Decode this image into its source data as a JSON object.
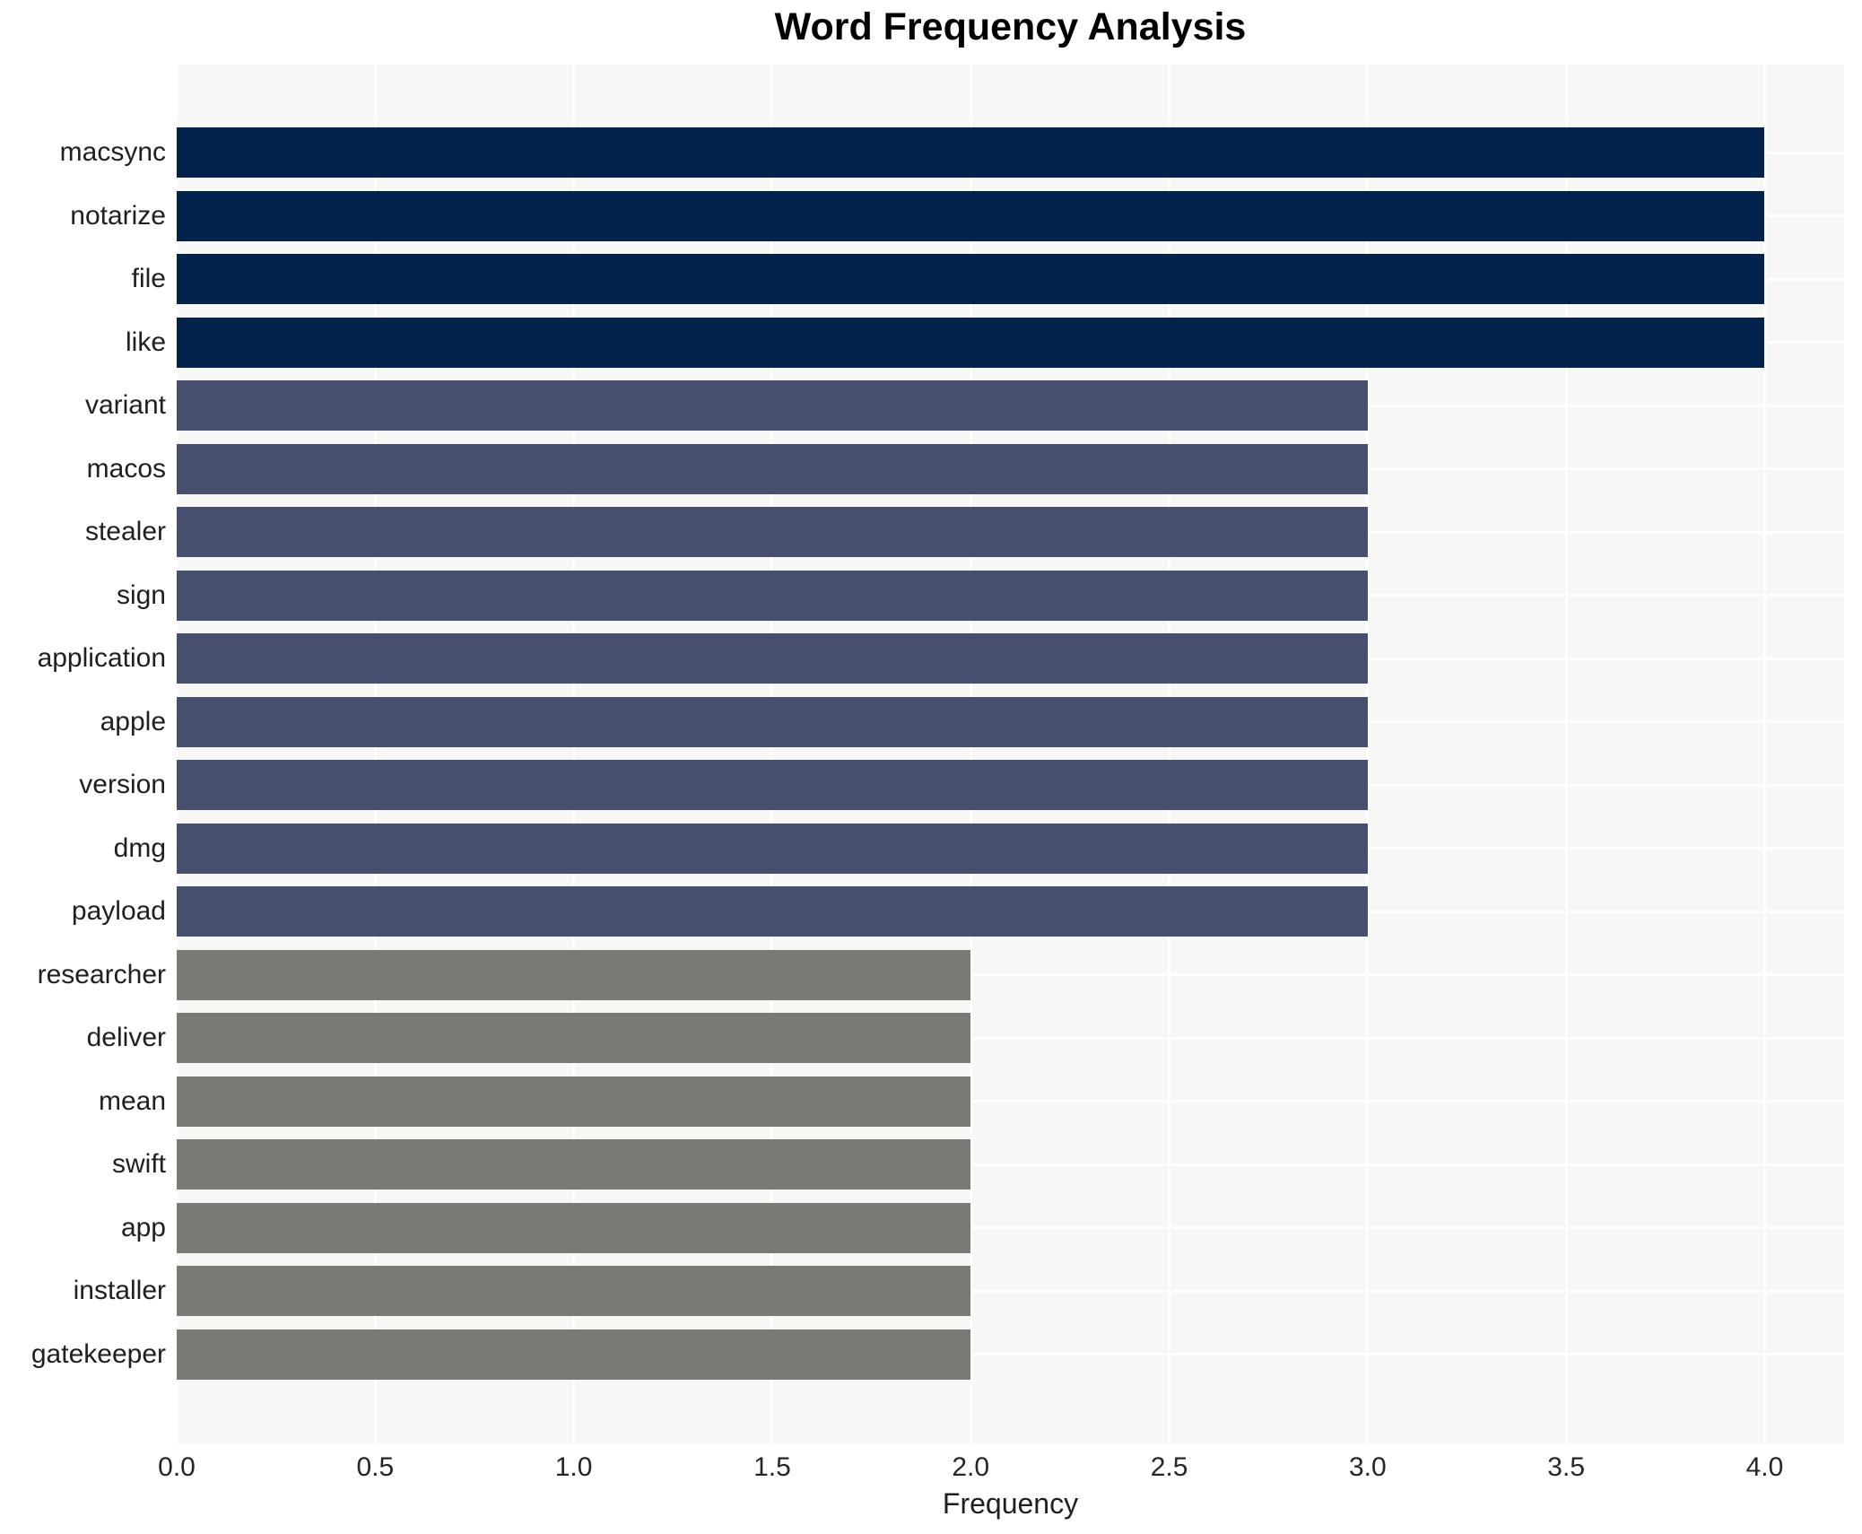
{
  "chart_data": {
    "type": "bar",
    "orientation": "horizontal",
    "title": "Word Frequency Analysis",
    "xlabel": "Frequency",
    "ylabel": "",
    "categories": [
      "macsync",
      "notarize",
      "file",
      "like",
      "variant",
      "macos",
      "stealer",
      "sign",
      "application",
      "apple",
      "version",
      "dmg",
      "payload",
      "researcher",
      "deliver",
      "mean",
      "swift",
      "app",
      "installer",
      "gatekeeper"
    ],
    "values": [
      4,
      4,
      4,
      4,
      3,
      3,
      3,
      3,
      3,
      3,
      3,
      3,
      3,
      2,
      2,
      2,
      2,
      2,
      2,
      2
    ],
    "xticks": [
      "0.0",
      "0.5",
      "1.0",
      "1.5",
      "2.0",
      "2.5",
      "3.0",
      "3.5",
      "4.0"
    ],
    "xlim": [
      0,
      4.2
    ],
    "grid": true,
    "legend": false,
    "colors": {
      "bar_freq4": "#04234c",
      "bar_freq3": "#46506e",
      "bar_freq2": "#7a7974",
      "plot_background": "#f7f7f5",
      "gridline": "#ffffff",
      "title_text": "#000000",
      "tick_text": "#262626"
    },
    "color_by_value": {
      "4": "#04234c",
      "3": "#46506e",
      "2": "#7a7974"
    }
  }
}
